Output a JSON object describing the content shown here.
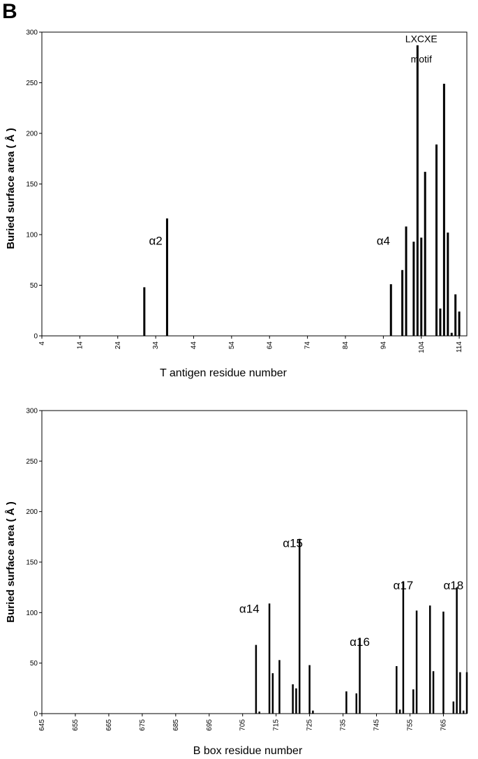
{
  "panel_label": "B",
  "chart_data": [
    {
      "type": "bar",
      "xlabel": "T antigen residue number",
      "ylabel": "Buried surface area ( Å )",
      "ylim": [
        0,
        300
      ],
      "yticks": [
        "0",
        "50",
        "100",
        "150",
        "200",
        "250",
        "300"
      ],
      "xlim": [
        4,
        116
      ],
      "xticks": [
        "4",
        "14",
        "24",
        "34",
        "44",
        "54",
        "64",
        "74",
        "84",
        "94",
        "104",
        "114"
      ],
      "x": [
        31,
        37,
        96,
        99,
        100,
        102,
        103,
        104,
        105,
        106,
        108,
        109,
        110,
        111,
        112,
        113,
        114
      ],
      "values": [
        48,
        116,
        51,
        65,
        108,
        93,
        287,
        97,
        162,
        0,
        189,
        27,
        249,
        102,
        3,
        41,
        24
      ],
      "annotations": [
        {
          "text": "α2",
          "x": 34,
          "y": 90
        },
        {
          "text": "α4",
          "x": 94,
          "y": 90
        },
        {
          "text": "LXCXE",
          "x": 104,
          "y": 290
        },
        {
          "text": "motif",
          "x": 104,
          "y": 270
        }
      ],
      "grid": false
    },
    {
      "type": "bar",
      "xlabel": "B box residue number",
      "ylabel": "Buried surface area ( Å )",
      "ylim": [
        0,
        300
      ],
      "yticks": [
        "0",
        "50",
        "100",
        "150",
        "200",
        "250",
        "300"
      ],
      "xlim": [
        645,
        772
      ],
      "xticks": [
        "645",
        "655",
        "665",
        "675",
        "685",
        "695",
        "705",
        "715",
        "725",
        "735",
        "745",
        "755",
        "765"
      ],
      "x": [
        709,
        710,
        713,
        714,
        716,
        720,
        721,
        722,
        725,
        726,
        736,
        739,
        740,
        751,
        752,
        753,
        756,
        757,
        761,
        762,
        765,
        768,
        769,
        770,
        771,
        772
      ],
      "values": [
        68,
        2,
        109,
        40,
        53,
        29,
        25,
        173,
        48,
        3,
        22,
        20,
        75,
        47,
        4,
        131,
        24,
        102,
        107,
        42,
        101,
        12,
        125,
        41,
        3,
        41
      ],
      "annotations": [
        {
          "text": "α14",
          "x": 707,
          "y": 100
        },
        {
          "text": "α15",
          "x": 720,
          "y": 165
        },
        {
          "text": "α16",
          "x": 740,
          "y": 67
        },
        {
          "text": "α17",
          "x": 753,
          "y": 123
        },
        {
          "text": "α18",
          "x": 768,
          "y": 123
        }
      ],
      "grid": false
    }
  ]
}
